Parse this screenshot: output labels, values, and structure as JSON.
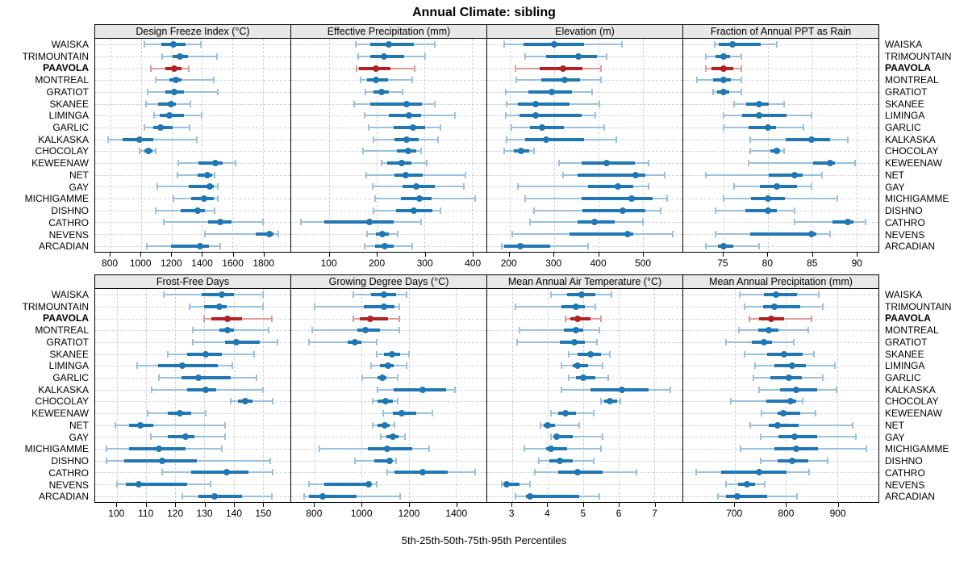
{
  "title": "Annual Climate: sibling",
  "footer": "5th-25th-50th-75th-95th Percentiles",
  "highlight_station": "PAAVOLA",
  "stations": [
    "WAISKA",
    "TRIMOUNTAIN",
    "PAAVOLA",
    "MONTREAL",
    "GRATIOT",
    "SKANEE",
    "LIMINGA",
    "GARLIC",
    "KALKASKA",
    "CHOCOLAY",
    "KEWEENAW",
    "NET",
    "GAY",
    "MICHIGAMME",
    "DISHNO",
    "CATHRO",
    "NEVENS",
    "ARCADIAN"
  ],
  "percentiles": [
    "5th",
    "25th",
    "50th",
    "75th",
    "95th"
  ],
  "colors": {
    "series": "#1f77b4",
    "whisker": "#9ac1dd",
    "highlight_series": "#b22222",
    "highlight_whisker": "#dc9b9b",
    "strip_bg": "#e8e8e8",
    "grid": "#cfcfcf"
  },
  "chart_data": [
    {
      "type": "percentile-range",
      "title": "Design Freeze Index (°C)",
      "xlim": [
        700,
        1980
      ],
      "ticks": [
        800,
        1000,
        1200,
        1400,
        1600,
        1800
      ],
      "values": [
        [
          1025,
          1135,
          1215,
          1295,
          1395
        ],
        [
          1140,
          1210,
          1255,
          1310,
          1500
        ],
        [
          1065,
          1160,
          1220,
          1265,
          1315
        ],
        [
          1095,
          1185,
          1230,
          1265,
          1480
        ],
        [
          1045,
          1160,
          1220,
          1280,
          1505
        ],
        [
          1035,
          1115,
          1195,
          1230,
          1325
        ],
        [
          1085,
          1125,
          1185,
          1280,
          1400
        ],
        [
          1025,
          1080,
          1130,
          1210,
          1320
        ],
        [
          785,
          880,
          990,
          1080,
          1365
        ],
        [
          990,
          1025,
          1050,
          1075,
          1095
        ],
        [
          1245,
          1375,
          1490,
          1535,
          1620
        ],
        [
          1240,
          1370,
          1435,
          1465,
          1485
        ],
        [
          1105,
          1315,
          1450,
          1480,
          1505
        ],
        [
          1215,
          1330,
          1415,
          1475,
          1505
        ],
        [
          1095,
          1260,
          1370,
          1420,
          1485
        ],
        [
          1150,
          1440,
          1520,
          1595,
          1800
        ],
        [
          1420,
          1750,
          1845,
          1870,
          1900
        ],
        [
          1040,
          1195,
          1385,
          1445,
          1520
        ]
      ]
    },
    {
      "type": "percentile-range",
      "title": "Effective Precipitation (mm)",
      "xlim": [
        20,
        430
      ],
      "ticks": [
        100,
        200,
        300,
        400
      ],
      "values": [
        [
          155,
          186,
          225,
          277,
          322
        ],
        [
          160,
          186,
          214,
          257,
          301
        ],
        [
          158,
          162,
          198,
          229,
          279
        ],
        [
          165,
          180,
          198,
          223,
          274
        ],
        [
          176,
          192,
          209,
          225,
          254
        ],
        [
          152,
          186,
          262,
          294,
          321
        ],
        [
          174,
          225,
          267,
          293,
          364
        ],
        [
          183,
          236,
          276,
          302,
          334
        ],
        [
          193,
          237,
          263,
          287,
          328
        ],
        [
          170,
          242,
          266,
          283,
          293
        ],
        [
          209,
          221,
          252,
          273,
          304
        ],
        [
          178,
          237,
          261,
          297,
          386
        ],
        [
          191,
          253,
          282,
          322,
          382
        ],
        [
          196,
          250,
          290,
          314,
          407
        ],
        [
          193,
          240,
          278,
          317,
          333
        ],
        [
          41,
          90,
          184,
          236,
          293
        ],
        [
          180,
          198,
          212,
          225,
          243
        ],
        [
          174,
          197,
          216,
          236,
          274
        ]
      ]
    },
    {
      "type": "percentile-range",
      "title": "Elevation (m)",
      "xlim": [
        150,
        590
      ],
      "ticks": [
        200,
        300,
        400,
        500
      ],
      "values": [
        [
          189,
          232,
          301,
          368,
          453
        ],
        [
          235,
          283,
          355,
          398,
          419
        ],
        [
          213,
          268,
          321,
          365,
          407
        ],
        [
          216,
          271,
          324,
          359,
          407
        ],
        [
          192,
          242,
          296,
          341,
          386
        ],
        [
          194,
          219,
          259,
          335,
          402
        ],
        [
          192,
          222,
          259,
          362,
          394
        ],
        [
          204,
          247,
          274,
          322,
          413
        ],
        [
          194,
          236,
          283,
          368,
          441
        ],
        [
          188,
          210,
          227,
          244,
          255
        ],
        [
          312,
          362,
          419,
          483,
          513
        ],
        [
          321,
          353,
          485,
          507,
          550
        ],
        [
          219,
          377,
          444,
          480,
          513
        ],
        [
          235,
          362,
          476,
          522,
          556
        ],
        [
          255,
          365,
          456,
          507,
          541
        ],
        [
          247,
          353,
          392,
          438,
          501
        ],
        [
          206,
          335,
          467,
          480,
          568
        ],
        [
          182,
          189,
          225,
          292,
          377
        ]
      ]
    },
    {
      "type": "percentile-range",
      "title": "Fraction of Annual PPT as Rain",
      "xlim": [
        70.5,
        92.5
      ],
      "ticks": [
        75,
        80,
        85,
        90
      ],
      "values": [
        [
          74,
          74.5,
          76,
          79.2,
          81
        ],
        [
          73,
          74.1,
          75,
          75.8,
          77
        ],
        [
          73,
          73.7,
          75,
          76.1,
          77
        ],
        [
          72,
          73.9,
          75,
          75.9,
          77
        ],
        [
          73.9,
          74.3,
          75,
          75.7,
          77
        ],
        [
          76.2,
          77.6,
          79,
          80.1,
          81.9
        ],
        [
          75,
          77.1,
          79,
          82.1,
          85
        ],
        [
          75,
          77.9,
          80,
          81,
          84
        ],
        [
          78,
          82,
          85,
          87,
          89
        ],
        [
          78,
          80.3,
          81,
          81.4,
          81.9
        ],
        [
          77.9,
          85.1,
          87,
          87.6,
          89.9
        ],
        [
          73,
          80.1,
          83,
          84,
          86.1
        ],
        [
          76.2,
          79.1,
          81,
          83.3,
          85
        ],
        [
          75,
          78.1,
          80,
          82,
          87.9
        ],
        [
          74.1,
          77.5,
          80,
          81,
          83
        ],
        [
          83,
          87.3,
          89,
          89.7,
          91
        ],
        [
          74.1,
          78,
          85,
          85.5,
          87
        ],
        [
          73,
          74.4,
          75,
          76.1,
          79
        ]
      ]
    },
    {
      "type": "percentile-range",
      "title": "Frost-Free Days",
      "xlim": [
        92.5,
        159.5
      ],
      "ticks": [
        100,
        110,
        120,
        130,
        140,
        150
      ],
      "values": [
        [
          116,
          129,
          136,
          140,
          150
        ],
        [
          125,
          130,
          135,
          137.5,
          150
        ],
        [
          130,
          132.5,
          138,
          143,
          153
        ],
        [
          126,
          135,
          138,
          140,
          152
        ],
        [
          126,
          137,
          141,
          149,
          155
        ],
        [
          117.5,
          124,
          130.5,
          136,
          147
        ],
        [
          107,
          114,
          122.5,
          134.5,
          139.5
        ],
        [
          114.5,
          122,
          128,
          139,
          148
        ],
        [
          112,
          124,
          130.5,
          134,
          150
        ],
        [
          139,
          141.5,
          144,
          146.5,
          153.5
        ],
        [
          110.5,
          117.5,
          121.5,
          125.5,
          130.5
        ],
        [
          99.5,
          104,
          108,
          112.5,
          137
        ],
        [
          111.5,
          117.5,
          123.5,
          126.5,
          137
        ],
        [
          96.5,
          104,
          114.5,
          123.5,
          136
        ],
        [
          96.5,
          102.5,
          115.5,
          127.5,
          152.5
        ],
        [
          115.5,
          125.5,
          137.5,
          145,
          153.5
        ],
        [
          100,
          103,
          107.5,
          124,
          132
        ],
        [
          122.5,
          128,
          133.5,
          143,
          153
        ]
      ]
    },
    {
      "type": "percentile-range",
      "title": "Growing Degree Days (°C)",
      "xlim": [
        700,
        1530
      ],
      "ticks": [
        800,
        1000,
        1200,
        1400
      ],
      "values": [
        [
          965,
          1040,
          1095,
          1145,
          1190
        ],
        [
          800,
          1010,
          1095,
          1140,
          1160
        ],
        [
          965,
          990,
          1035,
          1110,
          1160
        ],
        [
          790,
          980,
          1017,
          1077,
          1160
        ],
        [
          775,
          940,
          970,
          1000,
          1063
        ],
        [
          1065,
          1094,
          1128,
          1162,
          1200
        ],
        [
          1040,
          1077,
          1111,
          1136,
          1190
        ],
        [
          1002,
          1067,
          1088,
          1105,
          1154
        ],
        [
          1067,
          1136,
          1260,
          1357,
          1397
        ],
        [
          1048,
          1067,
          1100,
          1131,
          1154
        ],
        [
          1090,
          1131,
          1170,
          1231,
          1300
        ],
        [
          1048,
          1067,
          1097,
          1120,
          1139
        ],
        [
          1082,
          1105,
          1131,
          1157,
          1185
        ],
        [
          819,
          1025,
          1109,
          1214,
          1285
        ],
        [
          971,
          1054,
          1117,
          1128,
          1147
        ],
        [
          1109,
          1139,
          1260,
          1365,
          1482
        ],
        [
          777,
          839,
          1029,
          1040,
          1063
        ],
        [
          754,
          774,
          834,
          979,
          1162
        ]
      ]
    },
    {
      "type": "percentile-range",
      "title": "Mean Annual Air Temperature (°C)",
      "xlim": [
        2.3,
        7.8
      ],
      "ticks": [
        3,
        4,
        5,
        6,
        7
      ],
      "values": [
        [
          4.1,
          4.55,
          4.95,
          5.35,
          5.8
        ],
        [
          3.1,
          4.4,
          4.8,
          5.05,
          5.35
        ],
        [
          4.5,
          4.65,
          4.85,
          5.2,
          5.5
        ],
        [
          3.2,
          4.45,
          4.8,
          5.0,
          5.45
        ],
        [
          3.15,
          4.35,
          4.75,
          5.05,
          5.4
        ],
        [
          4.6,
          4.85,
          5.2,
          5.5,
          5.75
        ],
        [
          4.4,
          4.7,
          4.85,
          5.15,
          5.55
        ],
        [
          4.6,
          4.8,
          5.0,
          5.35,
          5.7
        ],
        [
          4.4,
          5.2,
          6.1,
          6.85,
          7.45
        ],
        [
          5.5,
          5.6,
          5.75,
          5.95,
          6.05
        ],
        [
          4.1,
          4.3,
          4.5,
          4.8,
          5.3
        ],
        [
          3.8,
          3.9,
          4.0,
          4.2,
          4.9
        ],
        [
          4.1,
          4.2,
          4.25,
          4.7,
          5.55
        ],
        [
          3.35,
          3.95,
          4.1,
          4.55,
          5.5
        ],
        [
          3.75,
          4.05,
          4.35,
          4.7,
          5.3
        ],
        [
          3.65,
          4.3,
          4.85,
          5.55,
          6.5
        ],
        [
          2.7,
          2.8,
          2.85,
          3.2,
          3.5
        ],
        [
          3.1,
          3.4,
          3.5,
          4.9,
          5.45
        ]
      ]
    },
    {
      "type": "percentile-range",
      "title": "Mean Annual Precipitation (mm)",
      "xlim": [
        600,
        980
      ],
      "ticks": [
        700,
        800,
        900
      ],
      "values": [
        [
          710,
          757,
          781,
          822,
          864
        ],
        [
          719,
          755,
          778,
          828,
          872
        ],
        [
          729,
          748,
          771,
          796,
          849
        ],
        [
          708,
          746,
          767,
          786,
          843
        ],
        [
          684,
          734,
          757,
          772,
          815
        ],
        [
          719,
          764,
          796,
          832,
          855
        ],
        [
          739,
          777,
          812,
          839,
          895
        ],
        [
          736,
          769,
          805,
          831,
          872
        ],
        [
          748,
          788,
          820,
          860,
          898
        ],
        [
          693,
          762,
          809,
          820,
          833
        ],
        [
          753,
          783,
          795,
          827,
          857
        ],
        [
          731,
          767,
          784,
          824,
          930
        ],
        [
          750,
          786,
          817,
          860,
          936
        ],
        [
          712,
          778,
          820,
          863,
          957
        ],
        [
          750,
          783,
          812,
          843,
          881
        ],
        [
          625,
          674,
          748,
          801,
          845
        ],
        [
          684,
          707,
          724,
          739,
          758
        ],
        [
          667,
          684,
          705,
          764,
          822
        ]
      ]
    }
  ]
}
